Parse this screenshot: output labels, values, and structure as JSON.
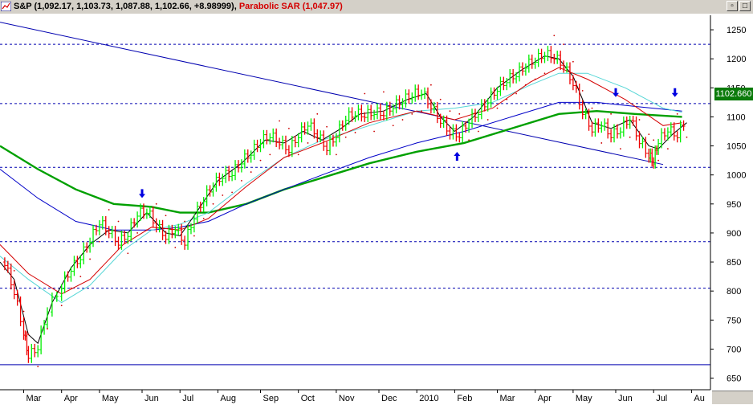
{
  "window": {
    "title_prefix": "S&P (1,092.17, 1,103.73, 1,087.88, 1,102.66, +8.98999)",
    "title_sar": "Parabolic SAR (1,047.97)",
    "buttons": [
      "restore-button",
      "maximize-button"
    ]
  },
  "colors": {
    "up_bar": "#00ee00",
    "down_bar": "#ee0000",
    "ma_200": "#00a000",
    "ma_150": "#0000c8",
    "ma_50": "#d40000",
    "ma_fast": "#000000",
    "ma_cyan": "#55d6d6",
    "sar_dots": "#cc0000",
    "trendline": "#0000b0",
    "hline": "#0000b0",
    "price_badge": "#0a7a0a"
  },
  "chart_data": {
    "type": "line",
    "ohlc_note": "",
    "y_ticks": [
      1250,
      1200,
      1150,
      1100,
      1050,
      1000,
      950,
      900,
      850,
      800,
      750,
      700,
      650
    ],
    "ylim": [
      630,
      1275
    ],
    "last_price_label": "1102.660",
    "x_ticks": [
      "Mar",
      "Apr",
      "May",
      "Jun",
      "Jul",
      "Aug",
      "Sep",
      "Oct",
      "Nov",
      "Dec",
      "2010",
      "Feb",
      "Mar",
      "Apr",
      "May",
      "Jun",
      "Jul",
      "Au"
    ],
    "x_tick_positions": [
      2009.17,
      2009.25,
      2009.33,
      2009.42,
      2009.5,
      2009.58,
      2009.67,
      2009.75,
      2009.83,
      2009.92,
      2010.0,
      2010.08,
      2010.17,
      2010.25,
      2010.33,
      2010.42,
      2010.5,
      2010.58
    ],
    "xlim": [
      2009.12,
      2010.62
    ],
    "horizontal_levels": [
      1225,
      1123,
      1013,
      885,
      805,
      673
    ],
    "trendline": {
      "x": [
        2009.12,
        2010.52
      ],
      "y": [
        1263,
        1018
      ]
    },
    "price_closes": [
      [
        2009.13,
        850
      ],
      [
        2009.15,
        800
      ],
      [
        2009.17,
        730
      ],
      [
        2009.18,
        690
      ],
      [
        2009.2,
        705
      ],
      [
        2009.22,
        770
      ],
      [
        2009.25,
        810
      ],
      [
        2009.27,
        840
      ],
      [
        2009.29,
        860
      ],
      [
        2009.31,
        890
      ],
      [
        2009.33,
        920
      ],
      [
        2009.35,
        905
      ],
      [
        2009.37,
        885
      ],
      [
        2009.39,
        900
      ],
      [
        2009.41,
        935
      ],
      [
        2009.43,
        940
      ],
      [
        2009.45,
        915
      ],
      [
        2009.47,
        895
      ],
      [
        2009.49,
        910
      ],
      [
        2009.51,
        885
      ],
      [
        2009.53,
        930
      ],
      [
        2009.55,
        960
      ],
      [
        2009.57,
        985
      ],
      [
        2009.59,
        1000
      ],
      [
        2009.61,
        1005
      ],
      [
        2009.63,
        1025
      ],
      [
        2009.65,
        1040
      ],
      [
        2009.67,
        1060
      ],
      [
        2009.69,
        1070
      ],
      [
        2009.71,
        1058
      ],
      [
        2009.73,
        1045
      ],
      [
        2009.75,
        1070
      ],
      [
        2009.77,
        1090
      ],
      [
        2009.79,
        1070
      ],
      [
        2009.81,
        1048
      ],
      [
        2009.83,
        1070
      ],
      [
        2009.85,
        1100
      ],
      [
        2009.87,
        1108
      ],
      [
        2009.89,
        1105
      ],
      [
        2009.91,
        1110
      ],
      [
        2009.93,
        1108
      ],
      [
        2009.95,
        1120
      ],
      [
        2009.97,
        1130
      ],
      [
        2009.99,
        1140
      ],
      [
        2010.01,
        1145
      ],
      [
        2010.03,
        1120
      ],
      [
        2010.05,
        1095
      ],
      [
        2010.07,
        1075
      ],
      [
        2010.09,
        1070
      ],
      [
        2010.11,
        1095
      ],
      [
        2010.13,
        1110
      ],
      [
        2010.15,
        1130
      ],
      [
        2010.17,
        1150
      ],
      [
        2010.19,
        1165
      ],
      [
        2010.21,
        1175
      ],
      [
        2010.23,
        1190
      ],
      [
        2010.25,
        1200
      ],
      [
        2010.27,
        1210
      ],
      [
        2010.29,
        1205
      ],
      [
        2010.31,
        1190
      ],
      [
        2010.33,
        1160
      ],
      [
        2010.35,
        1110
      ],
      [
        2010.37,
        1080
      ],
      [
        2010.39,
        1090
      ],
      [
        2010.41,
        1070
      ],
      [
        2010.43,
        1080
      ],
      [
        2010.45,
        1100
      ],
      [
        2010.47,
        1060
      ],
      [
        2010.49,
        1035
      ],
      [
        2010.5,
        1025
      ],
      [
        2010.51,
        1060
      ],
      [
        2010.53,
        1080
      ],
      [
        2010.55,
        1070
      ],
      [
        2010.57,
        1100
      ]
    ],
    "series": [
      {
        "key": "ma_200",
        "width": 2.4,
        "points": [
          [
            2009.12,
            1050
          ],
          [
            2009.2,
            1010
          ],
          [
            2009.28,
            975
          ],
          [
            2009.36,
            950
          ],
          [
            2009.44,
            945
          ],
          [
            2009.5,
            935
          ],
          [
            2009.56,
            935
          ],
          [
            2009.64,
            950
          ],
          [
            2009.72,
            975
          ],
          [
            2009.8,
            995
          ],
          [
            2009.9,
            1020
          ],
          [
            2010.0,
            1040
          ],
          [
            2010.1,
            1055
          ],
          [
            2010.2,
            1080
          ],
          [
            2010.3,
            1105
          ],
          [
            2010.38,
            1110
          ],
          [
            2010.46,
            1105
          ],
          [
            2010.56,
            1100
          ]
        ]
      },
      {
        "key": "ma_150",
        "width": 1,
        "points": [
          [
            2009.12,
            1010
          ],
          [
            2009.2,
            960
          ],
          [
            2009.28,
            920
          ],
          [
            2009.36,
            905
          ],
          [
            2009.44,
            905
          ],
          [
            2009.5,
            910
          ],
          [
            2009.56,
            920
          ],
          [
            2009.64,
            950
          ],
          [
            2009.72,
            975
          ],
          [
            2009.8,
            1000
          ],
          [
            2009.9,
            1030
          ],
          [
            2010.0,
            1055
          ],
          [
            2010.1,
            1075
          ],
          [
            2010.2,
            1100
          ],
          [
            2010.3,
            1125
          ],
          [
            2010.38,
            1125
          ],
          [
            2010.46,
            1118
          ],
          [
            2010.56,
            1110
          ]
        ]
      },
      {
        "key": "ma_cyan",
        "width": 1,
        "points": [
          [
            2009.12,
            860
          ],
          [
            2009.18,
            820
          ],
          [
            2009.25,
            780
          ],
          [
            2009.31,
            810
          ],
          [
            2009.38,
            870
          ],
          [
            2009.44,
            905
          ],
          [
            2009.5,
            915
          ],
          [
            2009.56,
            935
          ],
          [
            2009.64,
            985
          ],
          [
            2009.72,
            1030
          ],
          [
            2009.8,
            1060
          ],
          [
            2009.9,
            1085
          ],
          [
            2010.0,
            1110
          ],
          [
            2010.08,
            1115
          ],
          [
            2010.16,
            1125
          ],
          [
            2010.24,
            1155
          ],
          [
            2010.3,
            1175
          ],
          [
            2010.36,
            1175
          ],
          [
            2010.44,
            1150
          ],
          [
            2010.52,
            1115
          ],
          [
            2010.56,
            1108
          ]
        ]
      },
      {
        "key": "ma_50",
        "width": 1,
        "points": [
          [
            2009.12,
            880
          ],
          [
            2009.18,
            830
          ],
          [
            2009.25,
            795
          ],
          [
            2009.31,
            820
          ],
          [
            2009.38,
            880
          ],
          [
            2009.44,
            910
          ],
          [
            2009.5,
            905
          ],
          [
            2009.56,
            925
          ],
          [
            2009.64,
            980
          ],
          [
            2009.72,
            1030
          ],
          [
            2009.8,
            1055
          ],
          [
            2009.9,
            1090
          ],
          [
            2010.0,
            1110
          ],
          [
            2010.08,
            1095
          ],
          [
            2010.16,
            1115
          ],
          [
            2010.24,
            1160
          ],
          [
            2010.3,
            1185
          ],
          [
            2010.36,
            1165
          ],
          [
            2010.44,
            1130
          ],
          [
            2010.52,
            1085
          ],
          [
            2010.56,
            1090
          ]
        ]
      },
      {
        "key": "ma_fast",
        "width": 1,
        "points": [
          [
            2009.12,
            850
          ],
          [
            2009.15,
            820
          ],
          [
            2009.18,
            725
          ],
          [
            2009.2,
            710
          ],
          [
            2009.23,
            780
          ],
          [
            2009.27,
            840
          ],
          [
            2009.31,
            880
          ],
          [
            2009.35,
            905
          ],
          [
            2009.39,
            900
          ],
          [
            2009.43,
            935
          ],
          [
            2009.47,
            900
          ],
          [
            2009.5,
            895
          ],
          [
            2009.53,
            930
          ],
          [
            2009.58,
            990
          ],
          [
            2009.63,
            1020
          ],
          [
            2009.68,
            1060
          ],
          [
            2009.72,
            1055
          ],
          [
            2009.76,
            1075
          ],
          [
            2009.8,
            1060
          ],
          [
            2009.84,
            1080
          ],
          [
            2009.88,
            1105
          ],
          [
            2009.93,
            1110
          ],
          [
            2009.98,
            1130
          ],
          [
            2010.02,
            1140
          ],
          [
            2010.05,
            1100
          ],
          [
            2010.08,
            1075
          ],
          [
            2010.12,
            1100
          ],
          [
            2010.17,
            1150
          ],
          [
            2010.22,
            1180
          ],
          [
            2010.27,
            1205
          ],
          [
            2010.3,
            1200
          ],
          [
            2010.33,
            1170
          ],
          [
            2010.37,
            1090
          ],
          [
            2010.41,
            1080
          ],
          [
            2010.45,
            1095
          ],
          [
            2010.49,
            1050
          ],
          [
            2010.51,
            1045
          ],
          [
            2010.54,
            1070
          ],
          [
            2010.57,
            1090
          ]
        ]
      }
    ],
    "arrows": [
      {
        "x": 2009.42,
        "y": 963,
        "dir": "down"
      },
      {
        "x": 2010.085,
        "y": 1037,
        "dir": "up"
      },
      {
        "x": 2010.42,
        "y": 1137,
        "dir": "down"
      },
      {
        "x": 2010.545,
        "y": 1137,
        "dir": "down"
      }
    ]
  }
}
